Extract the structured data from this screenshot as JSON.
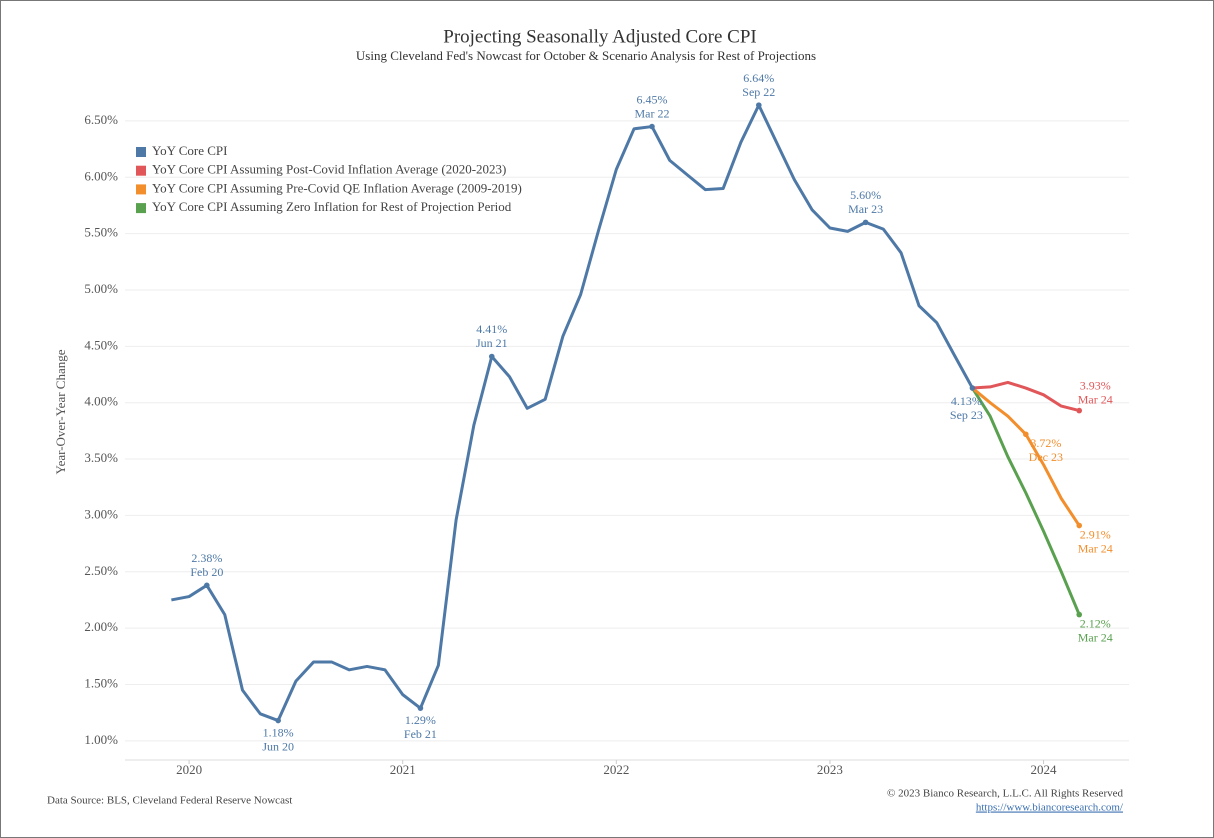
{
  "chart_data": {
    "type": "line",
    "title": "Projecting Seasonally Adjusted Core CPI",
    "subtitle": "Using Cleveland Fed's Nowcast for October & Scenario Analysis for Rest of Projections",
    "y_label": "Year-Over-Year Change",
    "source": "Data Source: BLS, Cleveland Federal Reserve Nowcast",
    "copyright": "© 2023 Bianco Research, L.L.C. All Rights Reserved",
    "url": "https://www.biancoresearch.com/",
    "xlim": [
      2019.7,
      2024.4
    ],
    "xticks": [
      2020,
      2021,
      2022,
      2023,
      2024
    ],
    "ylim": [
      0.83,
      6.73
    ],
    "yticks": [
      {
        "value": 1.0,
        "label": "1.00%"
      },
      {
        "value": 1.5,
        "label": "1.50%"
      },
      {
        "value": 2.0,
        "label": "2.00%"
      },
      {
        "value": 2.5,
        "label": "2.50%"
      },
      {
        "value": 3.0,
        "label": "3.00%"
      },
      {
        "value": 3.5,
        "label": "3.50%"
      },
      {
        "value": 4.0,
        "label": "4.00%"
      },
      {
        "value": 4.5,
        "label": "4.50%"
      },
      {
        "value": 5.0,
        "label": "5.00%"
      },
      {
        "value": 5.5,
        "label": "5.50%"
      },
      {
        "value": 6.0,
        "label": "6.00%"
      },
      {
        "value": 6.5,
        "label": "6.50%"
      }
    ],
    "grid": true,
    "legend": "upper left",
    "series": [
      {
        "name": "YoY Core CPI",
        "color": "#4e79a7",
        "x": [
          2019.917,
          2020,
          2020.083,
          2020.167,
          2020.25,
          2020.333,
          2020.417,
          2020.5,
          2020.583,
          2020.667,
          2020.75,
          2020.833,
          2020.917,
          2021,
          2021.083,
          2021.167,
          2021.25,
          2021.333,
          2021.417,
          2021.5,
          2021.583,
          2021.667,
          2021.75,
          2021.833,
          2021.917,
          2022,
          2022.083,
          2022.167,
          2022.25,
          2022.333,
          2022.417,
          2022.5,
          2022.583,
          2022.667,
          2022.75,
          2022.833,
          2022.917,
          2023,
          2023.083,
          2023.167,
          2023.25,
          2023.333,
          2023.417,
          2023.5,
          2023.583,
          2023.667
        ],
        "values": [
          2.25,
          2.28,
          2.38,
          2.12,
          1.45,
          1.24,
          1.18,
          1.53,
          1.7,
          1.7,
          1.63,
          1.66,
          1.63,
          1.41,
          1.29,
          1.67,
          2.96,
          3.8,
          4.41,
          4.23,
          3.95,
          4.03,
          4.59,
          4.96,
          5.53,
          6.07,
          6.43,
          6.45,
          6.15,
          6.02,
          5.89,
          5.9,
          6.31,
          6.64,
          6.31,
          5.98,
          5.71,
          5.55,
          5.52,
          5.6,
          5.54,
          5.33,
          4.86,
          4.71,
          4.42,
          4.13
        ],
        "value_labels": [
          null,
          null,
          "2.38%",
          null,
          null,
          null,
          "1.18%",
          null,
          null,
          null,
          null,
          null,
          null,
          null,
          "1.29%",
          null,
          null,
          null,
          "4.41%",
          null,
          null,
          null,
          null,
          null,
          null,
          null,
          null,
          "6.45%",
          null,
          null,
          null,
          null,
          null,
          "6.64%",
          null,
          null,
          null,
          null,
          null,
          "5.60%",
          null,
          null,
          null,
          null,
          null,
          "4.13%"
        ],
        "date_labels": [
          null,
          null,
          "Feb 20",
          null,
          null,
          null,
          "Jun 20",
          null,
          null,
          null,
          null,
          null,
          null,
          null,
          "Feb 21",
          null,
          null,
          null,
          "Jun 21",
          null,
          null,
          null,
          null,
          null,
          null,
          null,
          null,
          "Mar 22",
          null,
          null,
          null,
          null,
          null,
          "Sep 22",
          null,
          null,
          null,
          null,
          null,
          "Mar 23",
          null,
          null,
          null,
          null,
          null,
          "Sep 23"
        ]
      },
      {
        "name": "YoY Core CPI Assuming Post-Covid Inflation Average (2020-2023)",
        "color": "#e15759",
        "x": [
          2023.667,
          2023.75,
          2023.833,
          2023.917,
          2024,
          2024.083,
          2024.167
        ],
        "values": [
          4.13,
          4.14,
          4.18,
          4.13,
          4.07,
          3.97,
          3.93
        ],
        "value_labels": [
          null,
          null,
          null,
          null,
          null,
          null,
          "3.93%"
        ],
        "date_labels": [
          null,
          null,
          null,
          null,
          null,
          null,
          "Mar 24"
        ]
      },
      {
        "name": "YoY Core CPI Assuming Pre-Covid QE Inflation Average (2009-2019)",
        "color": "#f28e2b",
        "x": [
          2023.667,
          2023.75,
          2023.833,
          2023.917,
          2024,
          2024.083,
          2024.167
        ],
        "values": [
          4.13,
          4.0,
          3.88,
          3.72,
          3.45,
          3.15,
          2.91
        ],
        "value_labels": [
          null,
          null,
          null,
          "3.72%",
          null,
          null,
          "2.91%"
        ],
        "date_labels": [
          null,
          null,
          null,
          "Dec 23",
          null,
          null,
          "Mar 24"
        ]
      },
      {
        "name": "YoY Core CPI Assuming Zero Inflation for Rest of Projection Period",
        "color": "#59a14f",
        "x": [
          2023.667,
          2023.75,
          2023.833,
          2023.917,
          2024,
          2024.083,
          2024.167
        ],
        "values": [
          4.13,
          3.88,
          3.52,
          3.2,
          2.86,
          2.5,
          2.12
        ],
        "value_labels": [
          null,
          null,
          null,
          null,
          null,
          null,
          "2.12%"
        ],
        "date_labels": [
          null,
          null,
          null,
          null,
          null,
          null,
          "Mar 24"
        ]
      }
    ]
  }
}
